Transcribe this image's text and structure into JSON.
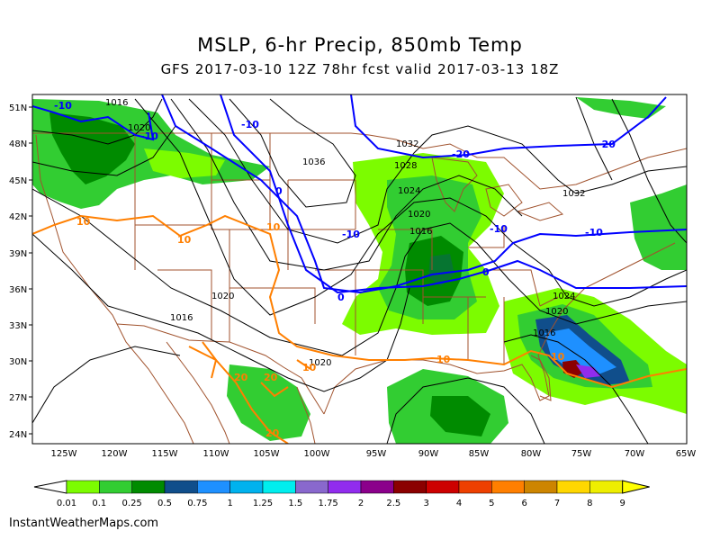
{
  "title": "MSLP, 6-hr Precip, 850mb Temp",
  "subtitle": "GFS 2017-03-10 12Z 78hr fcst valid 2017-03-13 18Z",
  "credit": "InstantWeatherMaps.com",
  "lat_labels": [
    "51N",
    "48N",
    "45N",
    "42N",
    "39N",
    "36N",
    "33N",
    "30N",
    "27N",
    "24N"
  ],
  "lon_labels": [
    "125W",
    "120W",
    "115W",
    "110W",
    "105W",
    "100W",
    "95W",
    "90W",
    "85W",
    "80W",
    "75W",
    "70W",
    "65W"
  ],
  "isobar_labels": [
    "1016",
    "1020",
    "1028",
    "1032",
    "1036",
    "1032",
    "1028",
    "1024",
    "1020",
    "1016",
    "1020",
    "1016",
    "1020",
    "1032",
    "1024",
    "1020",
    "1016"
  ],
  "temp_labels": [
    "-10",
    "-10",
    "-10",
    "-20",
    "-20",
    "-10",
    "-10",
    "-10",
    "0",
    "0",
    "0",
    "10",
    "10",
    "10",
    "10",
    "10",
    "20",
    "20",
    "20",
    "10"
  ],
  "legend": {
    "values": [
      "0.01",
      "0.1",
      "0.25",
      "0.5",
      "0.75",
      "1",
      "1.25",
      "1.5",
      "1.75",
      "2",
      "2.5",
      "3",
      "4",
      "5",
      "6",
      "7",
      "8",
      "9"
    ],
    "colors": [
      "#ffffff",
      "#7cfc00",
      "#32cd32",
      "#008b00",
      "#104e8b",
      "#1e90ff",
      "#00b2ee",
      "#00eeee",
      "#8968cd",
      "#912cee",
      "#8b008b",
      "#8b0000",
      "#cd0000",
      "#ee4000",
      "#ff7f00",
      "#cd8500",
      "#ffd700",
      "#eeee00",
      "#ffff00"
    ]
  },
  "colors": {
    "isobar": "#000000",
    "temp_cold": "#0000ff",
    "temp_warm": "#ff7f00",
    "border": "#a0522d"
  }
}
